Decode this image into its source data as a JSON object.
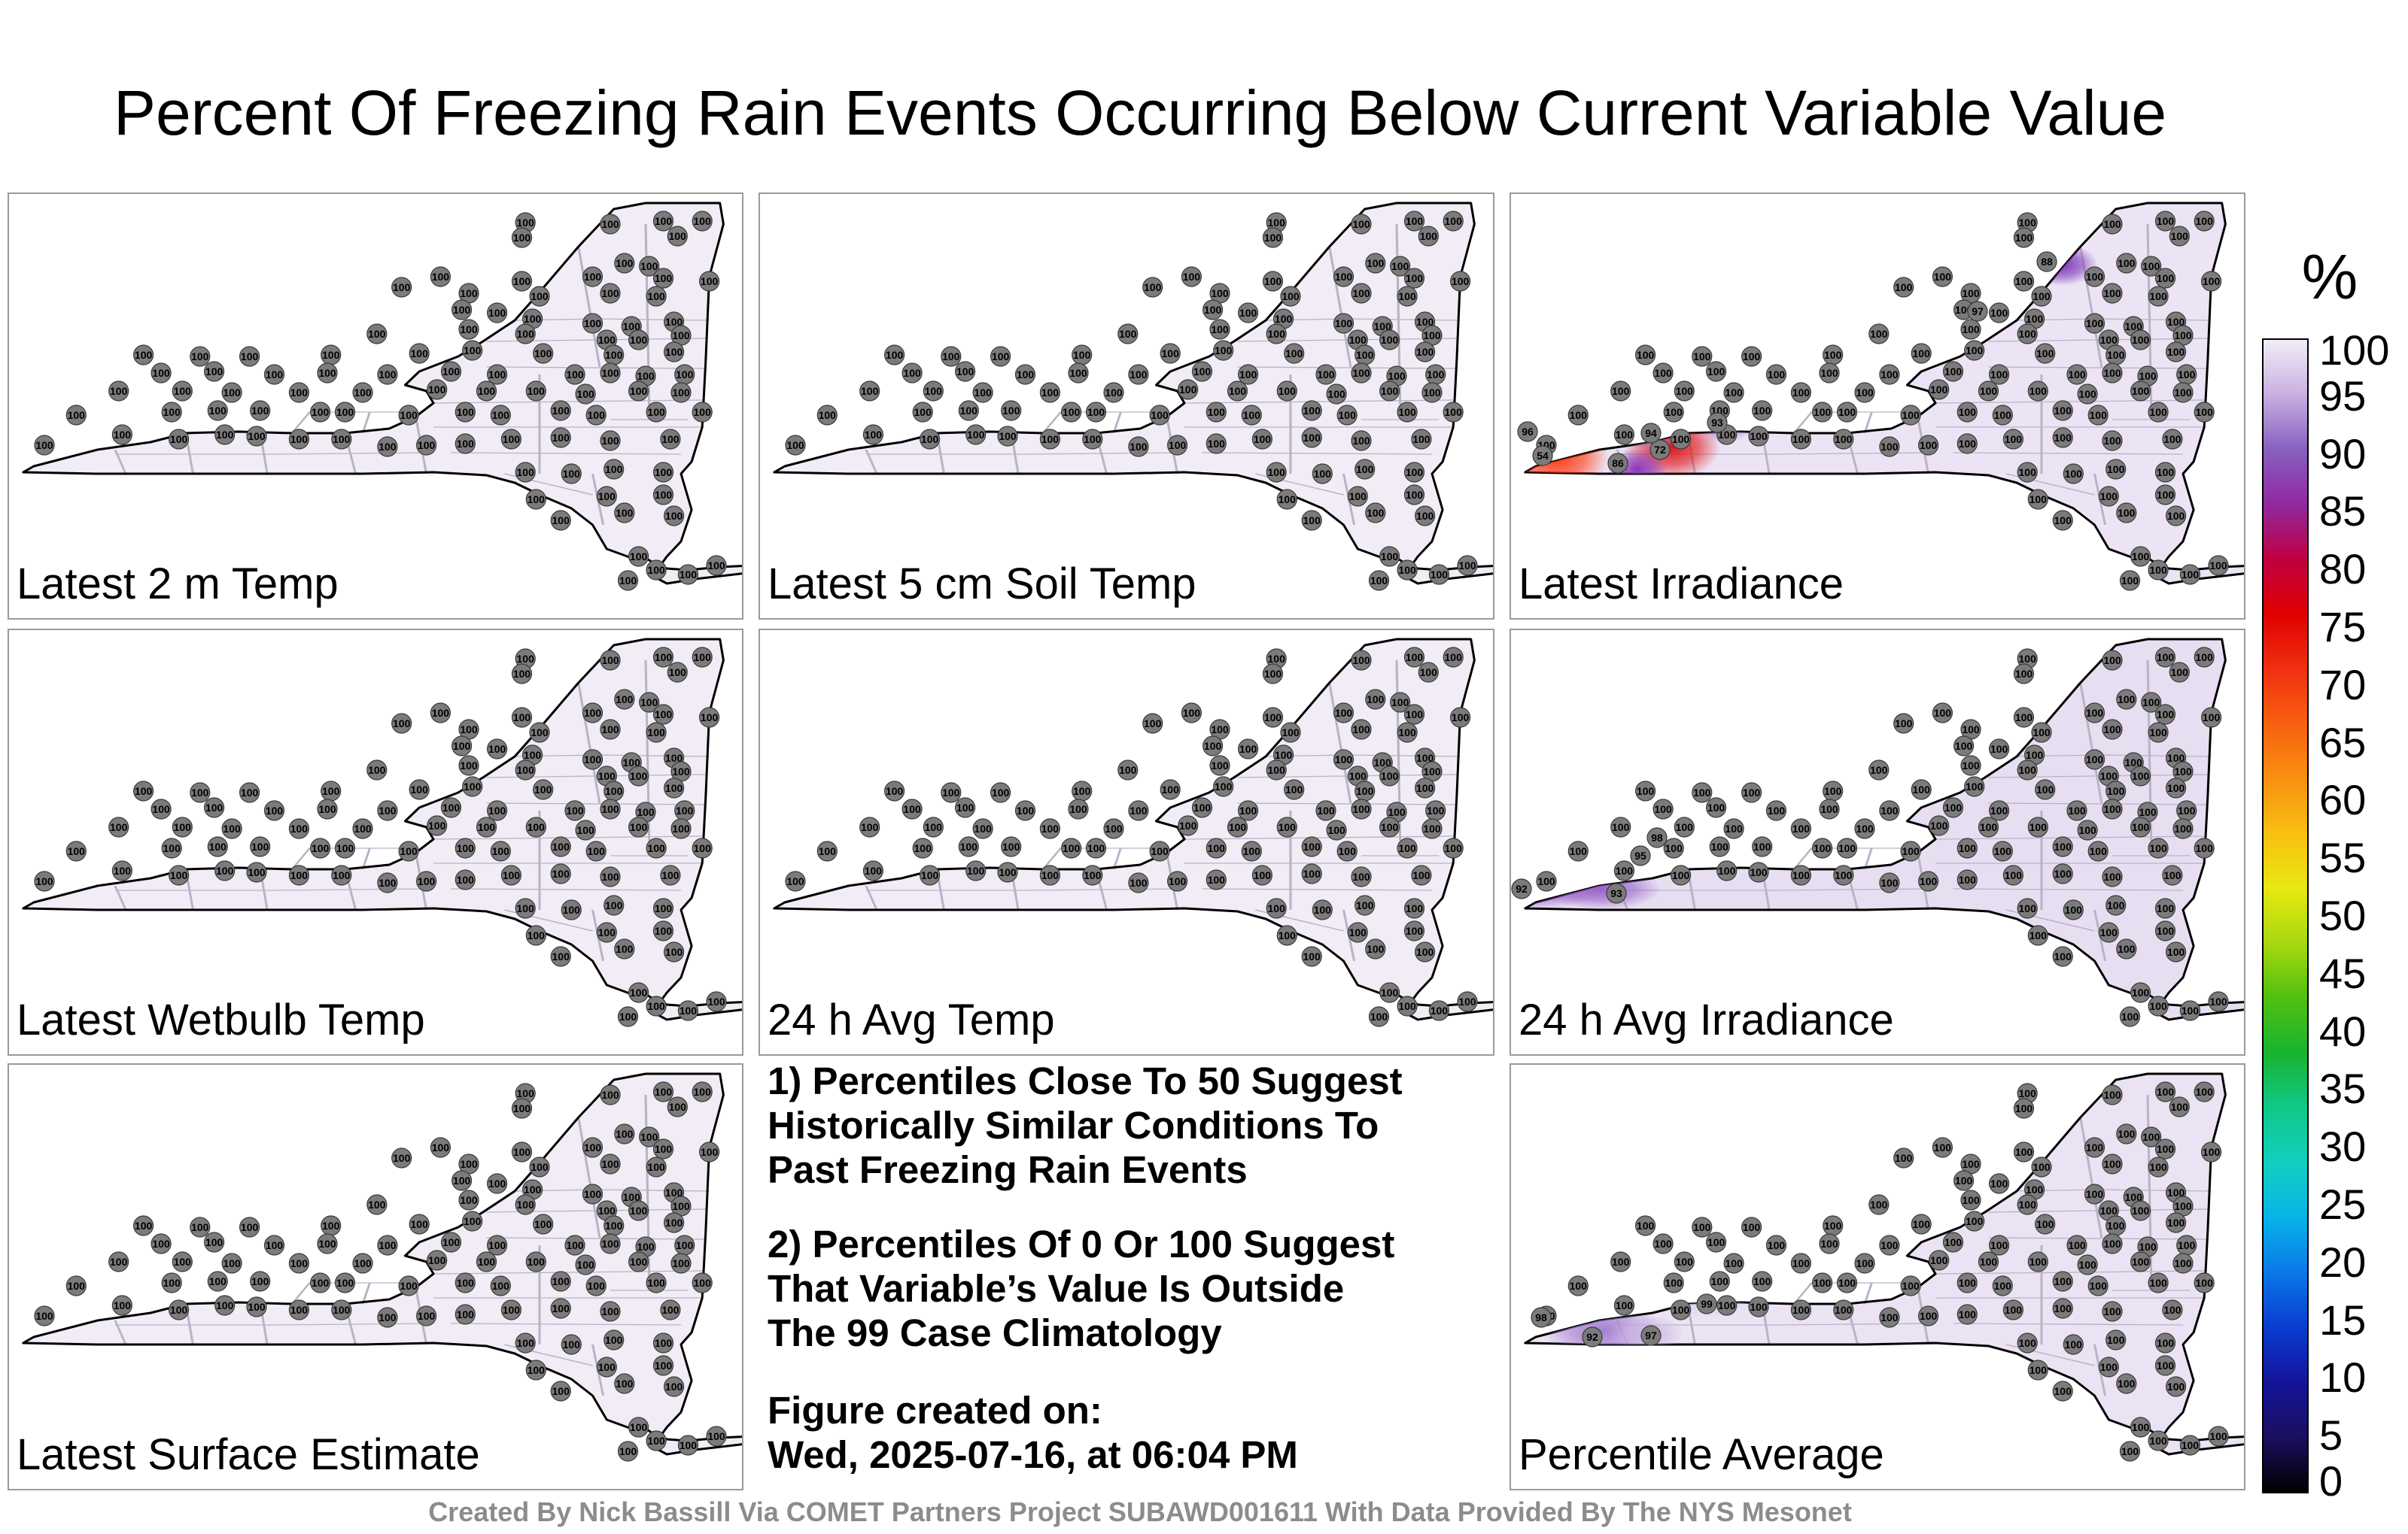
{
  "title": "Percent Of Freezing Rain Events Occurring Below Current Variable Value",
  "panels": [
    {
      "label": "Latest 2 m Temp",
      "station_value": "100",
      "fill": "#f1ecf6",
      "hotspots": []
    },
    {
      "label": "Latest 5 cm Soil Temp",
      "station_value": "100",
      "fill": "#f1ecf6",
      "hotspots": []
    },
    {
      "label": "Latest Irradiance",
      "station_value": "100",
      "fill": "#ece4f4",
      "hotspots": [
        {
          "value": "54",
          "color": "#ff3a10"
        },
        {
          "value": "72",
          "color": "#e0151a"
        },
        {
          "value": "86",
          "color": "#8a35b8"
        },
        {
          "value": "94",
          "color": "#a58cd2"
        },
        {
          "value": "96",
          "color": "#bba7dd"
        },
        {
          "value": "93",
          "color": "#a58cd2"
        },
        {
          "value": "88",
          "color": "#7d38b6"
        },
        {
          "value": "97",
          "color": "#c8b7e3"
        }
      ]
    },
    {
      "label": "Latest Wetbulb Temp",
      "station_value": "100",
      "fill": "#f1ecf6",
      "hotspots": []
    },
    {
      "label": "24 h Avg Temp",
      "station_value": "100",
      "fill": "#f1ecf6",
      "hotspots": []
    },
    {
      "label": "24 h Avg Irradiance",
      "station_value": "100",
      "fill": "#e8def2",
      "hotspots": [
        {
          "value": "92",
          "color": "#8c4cc2"
        },
        {
          "value": "93",
          "color": "#9a64c9"
        },
        {
          "value": "95",
          "color": "#b596d8"
        },
        {
          "value": "98",
          "color": "#d8c9ea"
        }
      ]
    },
    {
      "label": "Latest Surface Estimate",
      "station_value": "100",
      "fill": "#f1ecf6",
      "hotspots": []
    },
    {
      "label": "Percentile Average",
      "station_value": "100",
      "fill": "#ebe3f3",
      "hotspots": [
        {
          "value": "92",
          "color": "#a47fd0"
        },
        {
          "value": "97",
          "color": "#cdb9e4"
        },
        {
          "value": "98",
          "color": "#d6c6ea"
        },
        {
          "value": "99",
          "color": "#dfd3ee"
        }
      ]
    }
  ],
  "notes": {
    "n1": [
      "1) Percentiles Close To 50 Suggest",
      "Historically Similar Conditions To",
      "Past Freezing Rain Events"
    ],
    "n2": [
      "2) Percentiles Of 0 Or 100 Suggest",
      "That Variable’s Value Is Outside",
      "The 99 Case Climatology"
    ],
    "n3": [
      "Figure created on:",
      "Wed, 2025-07-16, at 06:04 PM"
    ]
  },
  "credit": "Created By Nick Bassill Via COMET Partners Project SUBAWD001611 With Data Provided By The NYS Mesonet",
  "colorbar": {
    "unit": "%",
    "min": 0,
    "max": 100,
    "ticks": [
      "0",
      "5",
      "10",
      "15",
      "20",
      "25",
      "30",
      "35",
      "40",
      "45",
      "50",
      "55",
      "60",
      "65",
      "70",
      "75",
      "80",
      "85",
      "90",
      "95",
      "100"
    ],
    "colors": [
      "#000000",
      "#1a0f60",
      "#14149a",
      "#0a3cd0",
      "#0a78e8",
      "#08b4e8",
      "#10d0c0",
      "#10c888",
      "#18b430",
      "#50c010",
      "#a8d810",
      "#e8e810",
      "#f8c010",
      "#f89010",
      "#f86010",
      "#f03010",
      "#e00000",
      "#c00040",
      "#9028a0",
      "#8860c0",
      "#c8b0e0",
      "#f2eef8"
    ]
  }
}
